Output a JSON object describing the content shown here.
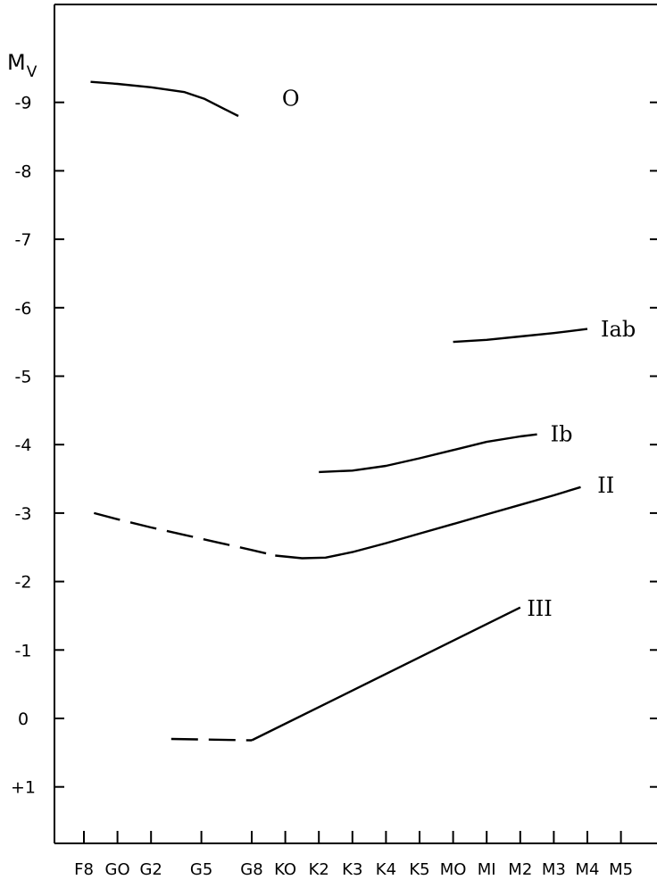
{
  "chart_data": {
    "type": "line",
    "ylabel": {
      "main": "M",
      "sub": "V"
    },
    "y_reversed": true,
    "ylim": [
      1.9,
      -10.5
    ],
    "y_ticks": [
      {
        "value": -9,
        "label": "-9"
      },
      {
        "value": -8,
        "label": "-8"
      },
      {
        "value": -7,
        "label": "-7"
      },
      {
        "value": -6,
        "label": "-6"
      },
      {
        "value": -5,
        "label": "-5"
      },
      {
        "value": -4,
        "label": "-4"
      },
      {
        "value": -3,
        "label": "-3"
      },
      {
        "value": -2,
        "label": "-2"
      },
      {
        "value": -1,
        "label": "-1"
      },
      {
        "value": 0,
        "label": "0"
      },
      {
        "value": 1,
        "label": "+1"
      }
    ],
    "x_ticks": [
      {
        "value": 0,
        "label": "F8"
      },
      {
        "value": 1,
        "label": "GO"
      },
      {
        "value": 2,
        "label": "G2"
      },
      {
        "value": 3.5,
        "label": "G5"
      },
      {
        "value": 5,
        "label": "G8"
      },
      {
        "value": 6,
        "label": "KO"
      },
      {
        "value": 7,
        "label": "K2"
      },
      {
        "value": 8,
        "label": "K3"
      },
      {
        "value": 9,
        "label": "K4"
      },
      {
        "value": 10,
        "label": "K5"
      },
      {
        "value": 11,
        "label": "MO"
      },
      {
        "value": 12,
        "label": "MI"
      },
      {
        "value": 13,
        "label": "M2"
      },
      {
        "value": 14,
        "label": "M3"
      },
      {
        "value": 15,
        "label": "M4"
      },
      {
        "value": 16,
        "label": "M5"
      }
    ],
    "series": [
      {
        "name": "O",
        "label_at": {
          "x": 5.9,
          "y": -8.95
        },
        "segments": [
          {
            "style": "solid",
            "points": [
              [
                0.2,
                -9.3
              ],
              [
                1,
                -9.27
              ],
              [
                2,
                -9.22
              ],
              [
                3,
                -9.15
              ],
              [
                3.6,
                -9.05
              ],
              [
                4.2,
                -8.9
              ],
              [
                4.6,
                -8.8
              ]
            ]
          }
        ]
      },
      {
        "name": "Iab",
        "label_at": {
          "x": 15.4,
          "y": -5.58
        },
        "segments": [
          {
            "style": "solid",
            "points": [
              [
                11,
                -5.5
              ],
              [
                12,
                -5.53
              ],
              [
                13,
                -5.58
              ],
              [
                14,
                -5.63
              ],
              [
                15,
                -5.69
              ]
            ]
          }
        ]
      },
      {
        "name": "Ib",
        "label_at": {
          "x": 13.9,
          "y": -4.05
        },
        "segments": [
          {
            "style": "solid",
            "points": [
              [
                7,
                -3.6
              ],
              [
                8,
                -3.62
              ],
              [
                9,
                -3.69
              ],
              [
                10,
                -3.8
              ],
              [
                11,
                -3.92
              ],
              [
                12,
                -4.04
              ],
              [
                13,
                -4.12
              ],
              [
                13.5,
                -4.15
              ]
            ]
          }
        ]
      },
      {
        "name": "II",
        "label_at": {
          "x": 15.3,
          "y": -3.3
        },
        "segments": [
          {
            "style": "dashed",
            "points": [
              [
                0.3,
                -3.0
              ],
              [
                1,
                -2.91
              ],
              [
                2,
                -2.79
              ],
              [
                3,
                -2.68
              ],
              [
                4,
                -2.57
              ],
              [
                5,
                -2.46
              ],
              [
                5.7,
                -2.38
              ]
            ]
          },
          {
            "style": "solid",
            "points": [
              [
                5.7,
                -2.38
              ],
              [
                6.5,
                -2.34
              ],
              [
                7.2,
                -2.35
              ],
              [
                8,
                -2.43
              ],
              [
                9,
                -2.56
              ],
              [
                10,
                -2.7
              ],
              [
                11,
                -2.84
              ],
              [
                12,
                -2.98
              ],
              [
                13,
                -3.12
              ],
              [
                14,
                -3.26
              ],
              [
                14.8,
                -3.38
              ]
            ]
          }
        ]
      },
      {
        "name": "III",
        "label_at": {
          "x": 13.2,
          "y": -1.5
        },
        "segments": [
          {
            "style": "dashed",
            "points": [
              [
                2.6,
                0.3
              ],
              [
                5,
                0.32
              ]
            ]
          },
          {
            "style": "solid",
            "points": [
              [
                5,
                0.32
              ],
              [
                13,
                -1.62
              ]
            ]
          }
        ]
      }
    ]
  }
}
